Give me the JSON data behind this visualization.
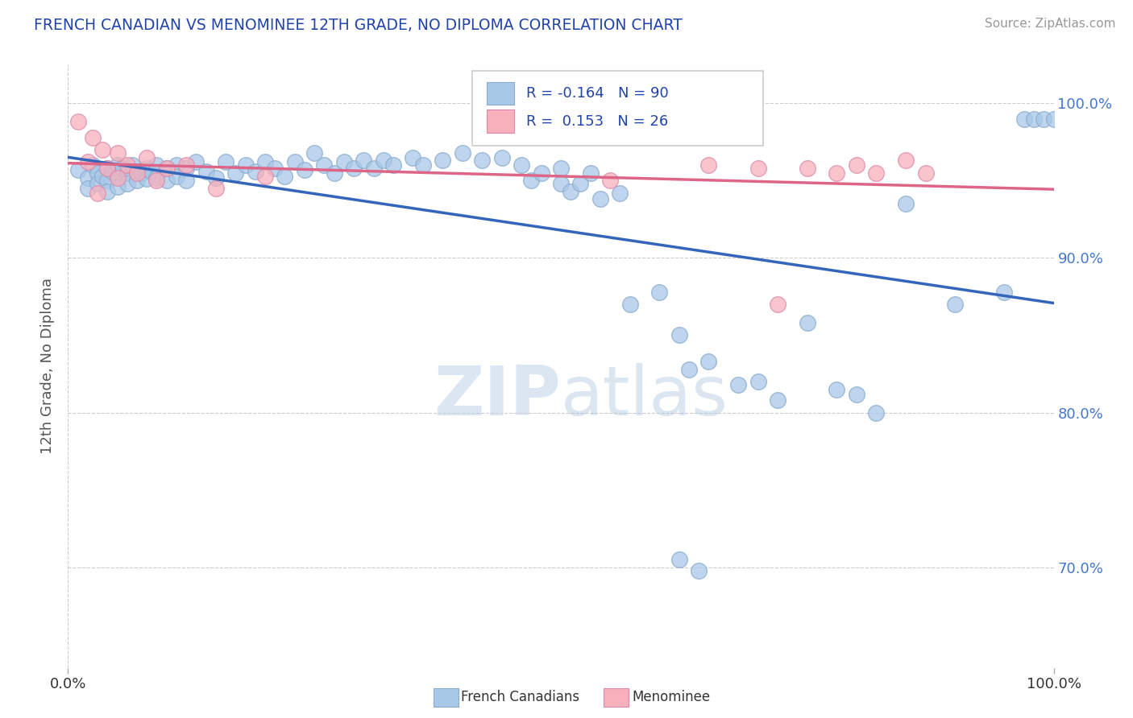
{
  "title": "FRENCH CANADIAN VS MENOMINEE 12TH GRADE, NO DIPLOMA CORRELATION CHART",
  "source": "Source: ZipAtlas.com",
  "ylabel": "12th Grade, No Diploma",
  "ytick_labels": [
    "70.0%",
    "80.0%",
    "90.0%",
    "100.0%"
  ],
  "ytick_values": [
    0.7,
    0.8,
    0.9,
    1.0
  ],
  "xlim": [
    0.0,
    1.0
  ],
  "ylim": [
    0.635,
    1.025
  ],
  "legend_r_blue": "-0.164",
  "legend_n_blue": "90",
  "legend_r_pink": "0.153",
  "legend_n_pink": "26",
  "blue_color": "#a8c8e8",
  "pink_color": "#f8b0bc",
  "trend_blue": "#3366bb",
  "trend_pink": "#dd6688",
  "blue_scatter": [
    [
      0.01,
      0.957
    ],
    [
      0.02,
      0.952
    ],
    [
      0.02,
      0.945
    ],
    [
      0.025,
      0.96
    ],
    [
      0.03,
      0.955
    ],
    [
      0.03,
      0.948
    ],
    [
      0.035,
      0.953
    ],
    [
      0.04,
      0.958
    ],
    [
      0.04,
      0.95
    ],
    [
      0.04,
      0.943
    ],
    [
      0.045,
      0.956
    ],
    [
      0.05,
      0.96
    ],
    [
      0.05,
      0.953
    ],
    [
      0.05,
      0.946
    ],
    [
      0.055,
      0.958
    ],
    [
      0.06,
      0.955
    ],
    [
      0.06,
      0.948
    ],
    [
      0.065,
      0.96
    ],
    [
      0.07,
      0.956
    ],
    [
      0.07,
      0.95
    ],
    [
      0.075,
      0.955
    ],
    [
      0.08,
      0.958
    ],
    [
      0.08,
      0.951
    ],
    [
      0.085,
      0.956
    ],
    [
      0.09,
      0.96
    ],
    [
      0.09,
      0.952
    ],
    [
      0.1,
      0.958
    ],
    [
      0.1,
      0.95
    ],
    [
      0.11,
      0.96
    ],
    [
      0.11,
      0.953
    ],
    [
      0.12,
      0.958
    ],
    [
      0.12,
      0.95
    ],
    [
      0.13,
      0.962
    ],
    [
      0.14,
      0.956
    ],
    [
      0.15,
      0.952
    ],
    [
      0.16,
      0.962
    ],
    [
      0.17,
      0.955
    ],
    [
      0.18,
      0.96
    ],
    [
      0.19,
      0.956
    ],
    [
      0.2,
      0.962
    ],
    [
      0.21,
      0.958
    ],
    [
      0.22,
      0.953
    ],
    [
      0.23,
      0.962
    ],
    [
      0.24,
      0.957
    ],
    [
      0.25,
      0.968
    ],
    [
      0.26,
      0.96
    ],
    [
      0.27,
      0.955
    ],
    [
      0.28,
      0.962
    ],
    [
      0.29,
      0.958
    ],
    [
      0.3,
      0.963
    ],
    [
      0.31,
      0.958
    ],
    [
      0.32,
      0.963
    ],
    [
      0.33,
      0.96
    ],
    [
      0.35,
      0.965
    ],
    [
      0.36,
      0.96
    ],
    [
      0.38,
      0.963
    ],
    [
      0.4,
      0.968
    ],
    [
      0.42,
      0.963
    ],
    [
      0.44,
      0.965
    ],
    [
      0.46,
      0.96
    ],
    [
      0.47,
      0.95
    ],
    [
      0.48,
      0.955
    ],
    [
      0.5,
      0.958
    ],
    [
      0.5,
      0.948
    ],
    [
      0.51,
      0.943
    ],
    [
      0.52,
      0.948
    ],
    [
      0.53,
      0.955
    ],
    [
      0.54,
      0.938
    ],
    [
      0.56,
      0.942
    ],
    [
      0.57,
      0.87
    ],
    [
      0.6,
      0.878
    ],
    [
      0.62,
      0.85
    ],
    [
      0.63,
      0.828
    ],
    [
      0.65,
      0.833
    ],
    [
      0.68,
      0.818
    ],
    [
      0.7,
      0.82
    ],
    [
      0.72,
      0.808
    ],
    [
      0.62,
      0.705
    ],
    [
      0.64,
      0.698
    ],
    [
      0.75,
      0.858
    ],
    [
      0.78,
      0.815
    ],
    [
      0.8,
      0.812
    ],
    [
      0.82,
      0.8
    ],
    [
      0.85,
      0.935
    ],
    [
      0.9,
      0.87
    ],
    [
      0.95,
      0.878
    ],
    [
      0.97,
      0.99
    ],
    [
      0.98,
      0.99
    ],
    [
      0.99,
      0.99
    ],
    [
      1.0,
      0.99
    ]
  ],
  "pink_scatter": [
    [
      0.01,
      0.988
    ],
    [
      0.02,
      0.962
    ],
    [
      0.025,
      0.978
    ],
    [
      0.03,
      0.942
    ],
    [
      0.035,
      0.97
    ],
    [
      0.04,
      0.958
    ],
    [
      0.05,
      0.968
    ],
    [
      0.05,
      0.952
    ],
    [
      0.06,
      0.96
    ],
    [
      0.07,
      0.955
    ],
    [
      0.08,
      0.965
    ],
    [
      0.09,
      0.95
    ],
    [
      0.1,
      0.958
    ],
    [
      0.12,
      0.96
    ],
    [
      0.15,
      0.945
    ],
    [
      0.2,
      0.953
    ],
    [
      0.55,
      0.95
    ],
    [
      0.65,
      0.96
    ],
    [
      0.7,
      0.958
    ],
    [
      0.72,
      0.87
    ],
    [
      0.75,
      0.958
    ],
    [
      0.78,
      0.955
    ],
    [
      0.8,
      0.96
    ],
    [
      0.82,
      0.955
    ],
    [
      0.85,
      0.963
    ],
    [
      0.87,
      0.955
    ]
  ]
}
